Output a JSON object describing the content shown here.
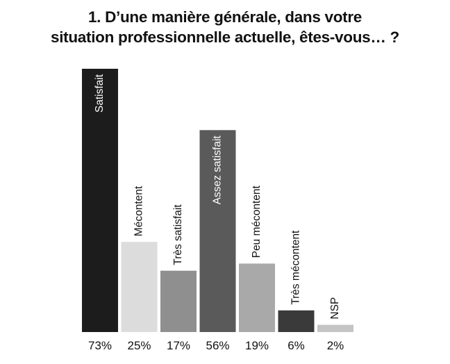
{
  "title_line1": "1. D’une manière générale, dans votre",
  "title_line2": "situation professionnelle actuelle, êtes-vous… ?",
  "chart_data": {
    "type": "bar",
    "title": "1. D’une manière générale, dans votre situation professionnelle actuelle, êtes-vous… ?",
    "xlabel": "",
    "ylabel": "",
    "ylim": [
      0,
      73
    ],
    "grid": false,
    "legend": "none",
    "unit": "%",
    "categories": [
      "Satisfait",
      "Mécontent",
      "Très satisfait",
      "Assez satisfait",
      "Peu mécontent",
      "Très mécontent",
      "NSP"
    ],
    "values": [
      73,
      25,
      17,
      56,
      19,
      6,
      2
    ],
    "tick_labels": [
      "73%",
      "25%",
      "17%",
      "56%",
      "19%",
      "6%",
      "2%"
    ],
    "colors": [
      "#1c1c1c",
      "#dcdcdc",
      "#8f8f8f",
      "#5a5a5a",
      "#a9a9a9",
      "#3a3a3a",
      "#c4c4c4"
    ],
    "label_inside": [
      true,
      false,
      false,
      true,
      false,
      false,
      false
    ]
  }
}
